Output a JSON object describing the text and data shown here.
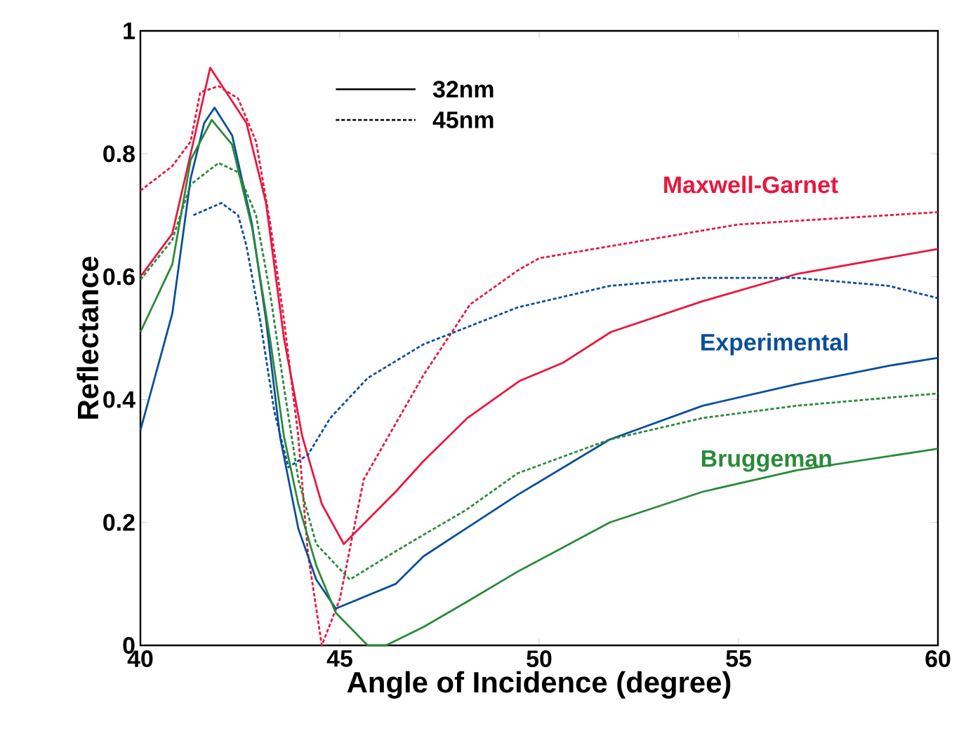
{
  "chart_data": {
    "type": "line",
    "xlabel": "Angle of Incidence (degree)",
    "ylabel": "Reflectance",
    "xlim": [
      40,
      60
    ],
    "ylim": [
      0,
      1
    ],
    "xticks": [
      40,
      45,
      50,
      55,
      60
    ],
    "yticks": [
      0,
      0.2,
      0.4,
      0.6,
      0.8,
      1
    ],
    "grid": false,
    "series": [
      {
        "color": "#e8173f",
        "line_style": "solid",
        "x": [
          40,
          40.8,
          41.26,
          41.75,
          42.66,
          43.15,
          43.6,
          44.06,
          44.55,
          45.1,
          46.4,
          47.1,
          48.2,
          49.5,
          50.6,
          51.8,
          54.1,
          56.5,
          60
        ],
        "values": [
          0.6,
          0.67,
          0.8,
          0.94,
          0.85,
          0.72,
          0.5,
          0.34,
          0.23,
          0.165,
          0.25,
          0.3,
          0.37,
          0.43,
          0.46,
          0.51,
          0.56,
          0.605,
          0.645
        ]
      },
      {
        "color": "#e8173f",
        "line_style": "dashed",
        "x": [
          40,
          40.8,
          41.26,
          41.5,
          41.96,
          42.45,
          42.9,
          43.26,
          43.6,
          43.96,
          44.2,
          44.55,
          45.0,
          45.6,
          47.1,
          48.27,
          49.46,
          50,
          55,
          60
        ],
        "values": [
          0.74,
          0.78,
          0.82,
          0.9,
          0.91,
          0.89,
          0.82,
          0.685,
          0.53,
          0.34,
          0.15,
          0.0,
          0.075,
          0.27,
          0.44,
          0.555,
          0.61,
          0.63,
          0.685,
          0.705
        ]
      },
      {
        "color": "#0b4f9c",
        "line_style": "solid",
        "x": [
          40,
          40.8,
          41.26,
          41.6,
          41.86,
          42.3,
          42.8,
          43.15,
          43.5,
          43.96,
          44.41,
          44.9,
          46.4,
          47.1,
          48.16,
          49.46,
          51.77,
          54.1,
          56.46,
          58.77,
          60
        ],
        "values": [
          0.35,
          0.54,
          0.76,
          0.85,
          0.875,
          0.83,
          0.685,
          0.53,
          0.34,
          0.19,
          0.107,
          0.06,
          0.1,
          0.145,
          0.19,
          0.245,
          0.335,
          0.39,
          0.425,
          0.455,
          0.468
        ]
      },
      {
        "color": "#0b4f9c",
        "line_style": "dashed",
        "x": [
          41.33,
          42.03,
          42.45,
          42.66,
          43.0,
          43.36,
          43.71,
          44.2,
          44.76,
          45.7,
          47.1,
          49.46,
          51.77,
          54.1,
          56.46,
          58.77,
          60
        ],
        "values": [
          0.7,
          0.72,
          0.7,
          0.65,
          0.53,
          0.38,
          0.29,
          0.31,
          0.37,
          0.435,
          0.49,
          0.55,
          0.585,
          0.598,
          0.598,
          0.585,
          0.565
        ]
      },
      {
        "color": "#2a8a3a",
        "line_style": "solid",
        "x": [
          40,
          40.8,
          41.26,
          41.79,
          42.3,
          42.8,
          43.26,
          43.6,
          43.96,
          44.41,
          44.9,
          45.7,
          46.16,
          47.1,
          48.16,
          49.46,
          51.77,
          54.1,
          56.46,
          60
        ],
        "values": [
          0.51,
          0.62,
          0.79,
          0.855,
          0.815,
          0.68,
          0.495,
          0.34,
          0.23,
          0.13,
          0.053,
          0.0,
          0.0,
          0.03,
          0.07,
          0.12,
          0.2,
          0.25,
          0.285,
          0.32
        ]
      },
      {
        "color": "#2a8a3a",
        "line_style": "dashed",
        "x": [
          40,
          40.8,
          41.26,
          41.96,
          42.45,
          42.9,
          43.26,
          43.6,
          43.96,
          44.41,
          45.25,
          46.4,
          47.1,
          48.16,
          49.46,
          51.77,
          54.1,
          56.46,
          60
        ],
        "values": [
          0.595,
          0.66,
          0.75,
          0.785,
          0.77,
          0.7,
          0.57,
          0.42,
          0.27,
          0.165,
          0.107,
          0.153,
          0.18,
          0.22,
          0.28,
          0.335,
          0.37,
          0.39,
          0.41
        ]
      }
    ],
    "annotations": [
      "Maxwell-Garnet",
      "Experimental",
      "Bruggeman",
      "32nm",
      "45nm"
    ]
  }
}
